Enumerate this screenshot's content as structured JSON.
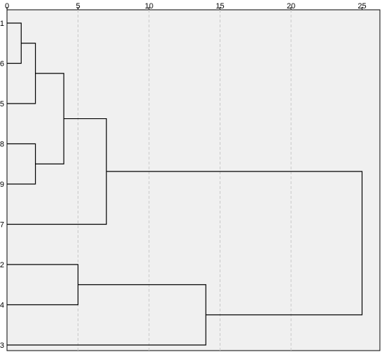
{
  "chart_data": {
    "type": "dendrogram",
    "orientation": "horizontal",
    "title": "",
    "xlabel": "",
    "ylabel": "",
    "xlim": [
      0,
      25
    ],
    "x_ticks": [
      0,
      5,
      10,
      15,
      20,
      25
    ],
    "x_tick_labels": [
      "0",
      "5",
      "10",
      "15",
      "20",
      "25"
    ],
    "grid": "vertical-dashed",
    "leaf_order": [
      "1",
      "6",
      "5",
      "8",
      "9",
      "7",
      "2",
      "4",
      "3"
    ],
    "merges": [
      {
        "left": "1",
        "right": "6",
        "distance": 1,
        "cluster": "A"
      },
      {
        "left": "A",
        "right": "5",
        "distance": 2,
        "cluster": "B"
      },
      {
        "left": "8",
        "right": "9",
        "distance": 2,
        "cluster": "C"
      },
      {
        "left": "B",
        "right": "C",
        "distance": 4,
        "cluster": "D"
      },
      {
        "left": "D",
        "right": "7",
        "distance": 7,
        "cluster": "E"
      },
      {
        "left": "2",
        "right": "4",
        "distance": 5,
        "cluster": "F"
      },
      {
        "left": "F",
        "right": "3",
        "distance": 14,
        "cluster": "G"
      },
      {
        "left": "E",
        "right": "G",
        "distance": 25,
        "cluster": "H"
      }
    ],
    "colors": {
      "plot_background": "#f0f0f0",
      "grid": "#c8c8c8",
      "lines": "#000000"
    }
  }
}
